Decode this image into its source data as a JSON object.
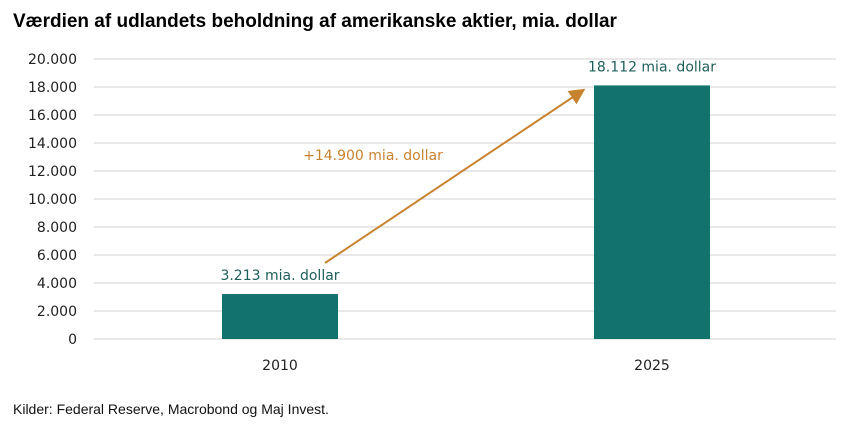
{
  "chart_data": {
    "type": "bar",
    "title": "Værdien af udlandets beholdning af amerikanske aktier, mia. dollar",
    "categories": [
      "2010",
      "2025"
    ],
    "values": [
      3213,
      18112
    ],
    "data_labels": [
      "3.213 mia. dollar",
      "18.112 mia. dollar"
    ],
    "annotation": "+14.900 mia. dollar",
    "ylim": [
      0,
      20000
    ],
    "yticks": [
      0,
      2000,
      4000,
      6000,
      8000,
      10000,
      12000,
      14000,
      16000,
      18000,
      20000
    ],
    "ytick_labels": [
      "0",
      "2.000",
      "4.000",
      "6.000",
      "8.000",
      "10.000",
      "12.000",
      "14.000",
      "16.000",
      "18.000",
      "20.000"
    ],
    "grid": true,
    "xlabel": "",
    "ylabel": ""
  },
  "source": "Kilder: Federal Reserve, Macrobond og Maj Invest.",
  "colors": {
    "bar": "#12736c",
    "arrow": "#c8832f",
    "grid": "#d9d9d9"
  }
}
